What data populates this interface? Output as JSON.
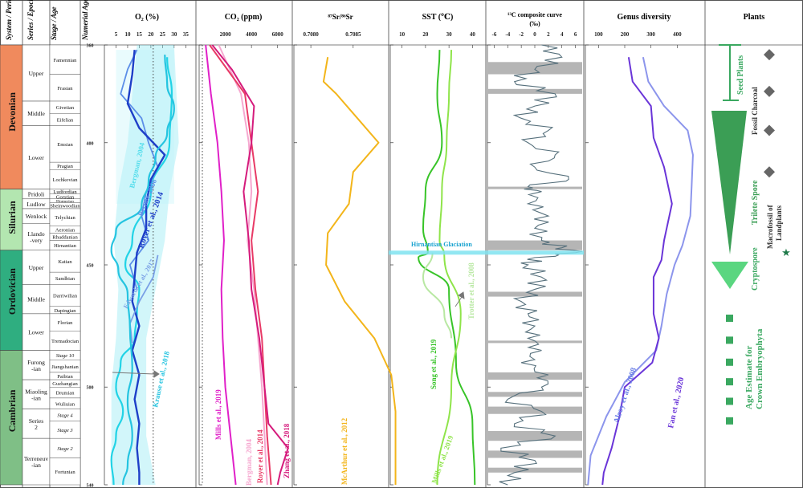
{
  "header": {
    "system": "System / Period",
    "series": "Series / Epoch",
    "stage": "Stage / Age",
    "age": "Numerial Age (Ma)"
  },
  "panels": {
    "o2": "O₂ (%)",
    "co2": "CO₂ (ppm)",
    "sr": "⁸⁷Sr/⁸⁶Sr",
    "sst": "SST (℃)",
    "c13_line1": "¹³C composite curve",
    "c13_line2": "(‰)",
    "genus": "Genus diversity",
    "plants": "Plants"
  },
  "axes": {
    "age": [
      "360",
      "400",
      "450",
      "500",
      "540"
    ],
    "o2": [
      "5",
      "10",
      "15",
      "20",
      "25",
      "30",
      "35"
    ],
    "co2": [
      "2000",
      "4000",
      "6000"
    ],
    "sr": [
      "0.7080",
      "0.7085"
    ],
    "sst": [
      "10",
      "20",
      "30",
      "40"
    ],
    "c13": [
      "-6",
      "-4",
      "-2",
      "0",
      "2",
      "4",
      "6"
    ],
    "genus": [
      "100",
      "200",
      "300",
      "400"
    ]
  },
  "systems": [
    {
      "name": "Devonian",
      "color": "#f08a5d"
    },
    {
      "name": "Silurian",
      "color": "#b3e6b0"
    },
    {
      "name": "Ordovician",
      "color": "#2fae80"
    },
    {
      "name": "Cambrian",
      "color": "#7fbf86"
    }
  ],
  "series": [
    "Upper",
    "Middle",
    "Lower",
    "Pridoli",
    "Ludlow",
    "Wenlock",
    "Llando -very",
    "Upper",
    "Middle",
    "Lower",
    "Furong -ian",
    "Miaoling -ian",
    "Series 2",
    "Terreneuv -ian"
  ],
  "stages": [
    "Famennian",
    "Frasian",
    "Givetian",
    "Eifelian",
    "Emsian",
    "Pragian",
    "Lochkovian",
    "Ludfordian",
    "Gorstian",
    "Homerian",
    "Sheinwoodian",
    "Telychian",
    "Aeronian",
    "Rhuddanian",
    "Hirnantian",
    "Katian",
    "Sandbian",
    "Darriwilian",
    "Dapingian",
    "Florian",
    "Tremadocian",
    "Stage 10",
    "Jiangshanian",
    "Paibian",
    "Guzhangian",
    "Drumian",
    "Wuliuian",
    "Stage 4",
    "Stage 3",
    "Stage 2",
    "Fortunian"
  ],
  "chart_data": {
    "type": "line",
    "y_axis": {
      "label": "Numerial Age (Ma)",
      "range": [
        360,
        540
      ]
    },
    "glaciation": {
      "label": "Hirnantian Glaciation",
      "age": 445
    },
    "o2": {
      "xlim": [
        0,
        38
      ],
      "reference_line": 21,
      "series": [
        {
          "name": "Bergman, 2004",
          "color": "#22d3e6",
          "ages": [
            365,
            380,
            400,
            420,
            440,
            450,
            460,
            470,
            480,
            490,
            500,
            510,
            520,
            530,
            540
          ],
          "values": [
            27,
            29,
            28,
            20,
            12,
            9,
            15,
            14,
            13,
            7,
            5,
            8,
            5,
            3,
            4
          ]
        },
        {
          "name": "Berner, 2006",
          "color": "#5c8ee8",
          "ages": [
            362,
            370,
            380,
            390,
            400,
            410,
            420,
            430,
            440,
            450,
            460
          ],
          "values": [
            14,
            10,
            7,
            16,
            19,
            23,
            18,
            16,
            19,
            11,
            14
          ]
        },
        {
          "name": "Royer et al., 2014",
          "color": "#1e3fc8",
          "ages": [
            362,
            372,
            384,
            394,
            405,
            415,
            425,
            435,
            445,
            455,
            465,
            475,
            485,
            495,
            505,
            515,
            525,
            535,
            540
          ],
          "values": [
            13,
            12,
            10,
            15,
            26,
            20,
            18,
            18,
            14,
            13,
            12,
            15,
            12,
            15,
            13,
            15,
            14,
            15,
            15
          ]
        },
        {
          "name": "Edwards et al., 2017",
          "color": "#7aa0e6",
          "ages": [
            446,
            455,
            465,
            474,
            482
          ],
          "values": [
            23,
            21,
            15,
            11,
            12
          ]
        },
        {
          "name": "Krause et al., 2018",
          "color": "#25c4e0",
          "ages": [
            364,
            376,
            386,
            396,
            406,
            416,
            426,
            436,
            444,
            452,
            462,
            476,
            492,
            506,
            520,
            532,
            540
          ],
          "values": [
            26,
            27,
            30,
            27,
            22,
            19,
            16,
            5,
            3,
            6,
            10,
            11,
            12,
            10,
            12,
            10,
            8
          ]
        }
      ]
    },
    "co2": {
      "xlim": [
        0,
        7000
      ],
      "series": [
        {
          "name": "Mills et al., 2019",
          "color": "#e020c8",
          "ages": [
            360,
            380,
            400,
            420,
            440,
            460,
            480,
            500,
            520,
            540
          ],
          "values": [
            500,
            900,
            1400,
            1700,
            1900,
            1700,
            1800,
            2000,
            2400,
            2800
          ]
        },
        {
          "name": "Bergman, 2004",
          "color": "#f6a8d0",
          "ages": [
            360,
            380,
            400,
            420,
            440,
            460,
            480,
            500,
            520,
            540
          ],
          "values": [
            1500,
            3200,
            3800,
            4000,
            3700,
            4200,
            4500,
            4800,
            5000,
            5200
          ]
        },
        {
          "name": "Royer et al., 2014",
          "color": "#e83a66",
          "ages": [
            360,
            380,
            400,
            420,
            440,
            460,
            480,
            500,
            520,
            540
          ],
          "values": [
            800,
            3500,
            4000,
            4500,
            4000,
            4300,
            4800,
            5000,
            5200,
            5500
          ]
        },
        {
          "name": "Zhang et al., 2018",
          "color": "#d51b7c",
          "ages": [
            360,
            370,
            385,
            400,
            420,
            440,
            460,
            480,
            500,
            515,
            525,
            535,
            540
          ],
          "values": [
            1000,
            2500,
            4200,
            4000,
            3400,
            3800,
            4000,
            4600,
            5000,
            5300,
            6800,
            6200,
            6000
          ]
        }
      ]
    },
    "sr": {
      "xlim": [
        0.7078,
        0.7089
      ],
      "series": [
        {
          "name": "McArthur et al., 2012",
          "color": "#f3b51a",
          "ages": [
            365,
            375,
            380,
            390,
            400,
            412,
            425,
            437,
            450,
            465,
            480,
            495,
            510,
            540
          ],
          "values": [
            0.7082,
            0.70815,
            0.7083,
            0.70855,
            0.7088,
            0.7085,
            0.70845,
            0.7082,
            0.70818,
            0.7084,
            0.70875,
            0.70895,
            0.709,
            0.709
          ]
        }
      ]
    },
    "sst": {
      "xlim": [
        5,
        45
      ],
      "series": [
        {
          "name": "Song et al., 2019",
          "color": "#38c428",
          "ages": [
            362,
            380,
            400,
            420,
            435,
            445,
            447,
            460,
            490,
            515,
            540
          ],
          "values": [
            26,
            25,
            27,
            20,
            19,
            21,
            17,
            30,
            33,
            40,
            41
          ]
        },
        {
          "name": "Mills et al., 2019",
          "color": "#8fe44a",
          "ages": [
            362,
            380,
            400,
            420,
            440,
            446,
            470,
            500,
            540
          ],
          "values": [
            31,
            30,
            29,
            27,
            26,
            28,
            35,
            31,
            25
          ]
        },
        {
          "name": "Trotter et al., 2008",
          "color": "#b8e8a2",
          "ages": [
            445,
            455,
            470,
            480
          ],
          "values": [
            23,
            19,
            28,
            31
          ]
        }
      ]
    },
    "c13": {
      "xlim": [
        -7,
        7
      ],
      "gray_bands": [
        [
          367,
          372
        ],
        [
          378,
          380
        ],
        [
          418,
          419
        ],
        [
          440,
          444
        ],
        [
          461,
          463
        ],
        [
          481,
          482
        ],
        [
          494,
          497
        ],
        [
          502,
          504
        ],
        [
          508,
          511
        ],
        [
          518,
          522
        ],
        [
          526,
          529
        ],
        [
          533,
          535
        ]
      ],
      "series": [
        {
          "name": "¹³C composite curve",
          "color": "#56707c",
          "ages": [
            360,
            365,
            370,
            375,
            380,
            385,
            390,
            395,
            400,
            405,
            410,
            415,
            418,
            420,
            425,
            430,
            435,
            440,
            443,
            445,
            447,
            450,
            455,
            460,
            465,
            470,
            475,
            480,
            485,
            490,
            495,
            500,
            505,
            510,
            515,
            520,
            525,
            530,
            535,
            540
          ],
          "values": [
            1,
            4,
            0,
            -3,
            3,
            0,
            -2,
            2,
            -1,
            3,
            0,
            5,
            -1,
            1,
            -1,
            2,
            0,
            1,
            4,
            6,
            0,
            -1,
            1,
            0,
            -2,
            -1,
            0,
            -1,
            1,
            -2,
            2,
            1,
            -4,
            1,
            -3,
            3,
            -5,
            0,
            -3,
            -4
          ]
        }
      ]
    },
    "genus": {
      "xlim": [
        50,
        500
      ],
      "series": [
        {
          "name": "Alroy et al., 2008",
          "color": "#8c95ec",
          "ages": [
            365,
            375,
            385,
            395,
            405,
            418,
            430,
            442,
            450,
            462,
            475,
            485,
            498,
            512,
            528,
            540
          ],
          "values": [
            270,
            290,
            350,
            440,
            460,
            455,
            450,
            420,
            390,
            360,
            340,
            320,
            200,
            130,
            70,
            60
          ]
        },
        {
          "name": "Fan et al., 2020",
          "color": "#6a35d8",
          "ages": [
            365,
            375,
            385,
            398,
            410,
            425,
            440,
            448,
            455,
            470,
            480,
            490,
            500,
            512,
            525,
            535,
            540
          ],
          "values": [
            215,
            230,
            300,
            310,
            350,
            380,
            350,
            340,
            310,
            310,
            330,
            305,
            200,
            180,
            150,
            120,
            115
          ]
        }
      ]
    },
    "plants": {
      "seed_plants": {
        "label": "Seed Plants"
      },
      "fossil_charcoal": {
        "label": "Fossil Charcoal",
        "ages": [
          364,
          379,
          395,
          412
        ]
      },
      "trilete_spore": {
        "label": "Trilete Spore",
        "range": [
          376,
          444
        ]
      },
      "cryptospore": {
        "label": "Cryptospore",
        "range": [
          453,
          463
        ]
      },
      "macrofossil": {
        "label": "Macrofossil of Landplants",
        "age": 445
      },
      "crown_estimate": {
        "label": "Age Estimate for Crown Embryophyta",
        "ages": [
          472,
          481,
          490,
          498,
          506,
          514
        ]
      }
    }
  },
  "annotations": {
    "bergman_o2": "Bergman, 2004",
    "berner": "Berner, 2006",
    "royer_o2": "Royer et al., 2014",
    "edwards": "Edwards et al., 2017",
    "krause": "Krause et al., 2018",
    "mills_co2": "Mills et al., 2019",
    "bergman_co2": "Bergman, 2004",
    "royer_co2": "Royer et al., 2014",
    "zhang": "Zhang et al., 2018",
    "mcarthur": "McArthur et al., 2012",
    "hirnantian": "Hirnantian Glaciation",
    "song": "Song et al., 2019",
    "mills_sst": "Mills et al., 2019",
    "trotter": "Trotter et al., 2008",
    "alroy": "Alroy et al., 2008",
    "fan": "Fan et al., 2020",
    "seed_plants": "Seed Plants",
    "fossil_charcoal": "Fossil Charcoal",
    "trilete": "Trilete Spore",
    "cryptospore": "Cryptospore",
    "macro1": "Macrofossil of",
    "macro2": "Landplants",
    "crown1": "Age Estimate for",
    "crown2": "Crown Embryophyta"
  }
}
